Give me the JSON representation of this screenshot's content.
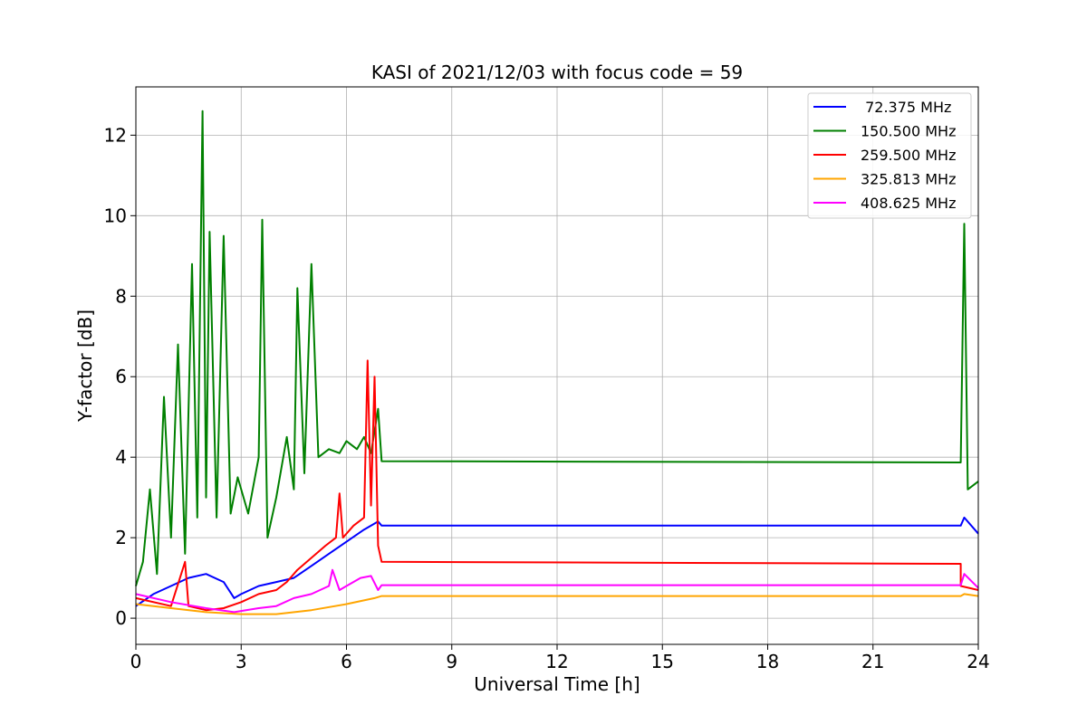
{
  "chart_data": {
    "type": "line",
    "title": "KASI of 2021/12/03 with focus code = 59",
    "xlabel": "Universal Time [h]",
    "ylabel": "Y-factor [dB]",
    "xlim": [
      0,
      24
    ],
    "ylim": [
      -0.65,
      13.2
    ],
    "xticks": [
      0,
      3,
      6,
      9,
      12,
      15,
      18,
      21,
      24
    ],
    "yticks": [
      0,
      2,
      4,
      6,
      8,
      10,
      12
    ],
    "grid": true,
    "legend_position": "top-right",
    "series": [
      {
        "name": " 72.375 MHz",
        "color": "#0000ff",
        "points": [
          [
            0,
            0.3
          ],
          [
            0.5,
            0.6
          ],
          [
            1,
            0.8
          ],
          [
            1.5,
            1.0
          ],
          [
            2,
            1.1
          ],
          [
            2.5,
            0.9
          ],
          [
            2.8,
            0.5
          ],
          [
            3,
            0.6
          ],
          [
            3.5,
            0.8
          ],
          [
            4,
            0.9
          ],
          [
            4.5,
            1.0
          ],
          [
            5,
            1.3
          ],
          [
            5.5,
            1.6
          ],
          [
            6,
            1.9
          ],
          [
            6.5,
            2.2
          ],
          [
            6.9,
            2.4
          ],
          [
            7,
            2.3
          ],
          [
            23.5,
            2.3
          ],
          [
            23.6,
            2.5
          ],
          [
            24,
            2.1
          ]
        ]
      },
      {
        "name": "150.500 MHz",
        "color": "#008000",
        "points": [
          [
            0,
            0.8
          ],
          [
            0.2,
            1.4
          ],
          [
            0.4,
            3.2
          ],
          [
            0.6,
            1.1
          ],
          [
            0.8,
            5.5
          ],
          [
            1,
            2.0
          ],
          [
            1.2,
            6.8
          ],
          [
            1.4,
            1.6
          ],
          [
            1.6,
            8.8
          ],
          [
            1.75,
            2.5
          ],
          [
            1.9,
            12.6
          ],
          [
            2.0,
            3.0
          ],
          [
            2.1,
            9.6
          ],
          [
            2.3,
            2.5
          ],
          [
            2.5,
            9.5
          ],
          [
            2.7,
            2.6
          ],
          [
            2.9,
            3.5
          ],
          [
            3.2,
            2.6
          ],
          [
            3.5,
            4.0
          ],
          [
            3.6,
            9.9
          ],
          [
            3.75,
            2.0
          ],
          [
            4,
            3.0
          ],
          [
            4.3,
            4.5
          ],
          [
            4.5,
            3.2
          ],
          [
            4.6,
            8.2
          ],
          [
            4.8,
            3.6
          ],
          [
            5,
            8.8
          ],
          [
            5.2,
            4.0
          ],
          [
            5.5,
            4.2
          ],
          [
            5.8,
            4.1
          ],
          [
            6,
            4.4
          ],
          [
            6.3,
            4.2
          ],
          [
            6.5,
            4.5
          ],
          [
            6.7,
            4.1
          ],
          [
            6.9,
            5.2
          ],
          [
            7,
            3.9
          ],
          [
            23.5,
            3.87
          ],
          [
            23.6,
            9.8
          ],
          [
            23.7,
            3.2
          ],
          [
            24,
            3.4
          ]
        ]
      },
      {
        "name": "259.500 MHz",
        "color": "#ff0000",
        "points": [
          [
            0,
            0.5
          ],
          [
            1,
            0.3
          ],
          [
            1.4,
            1.4
          ],
          [
            1.5,
            0.3
          ],
          [
            2,
            0.2
          ],
          [
            2.5,
            0.25
          ],
          [
            3,
            0.4
          ],
          [
            3.5,
            0.6
          ],
          [
            4,
            0.7
          ],
          [
            4.3,
            0.9
          ],
          [
            4.6,
            1.2
          ],
          [
            5,
            1.5
          ],
          [
            5.4,
            1.8
          ],
          [
            5.7,
            2.0
          ],
          [
            5.8,
            3.1
          ],
          [
            5.9,
            2.0
          ],
          [
            6.2,
            2.3
          ],
          [
            6.5,
            2.5
          ],
          [
            6.6,
            6.4
          ],
          [
            6.7,
            2.8
          ],
          [
            6.8,
            6.0
          ],
          [
            6.9,
            1.8
          ],
          [
            7,
            1.4
          ],
          [
            23.5,
            1.35
          ],
          [
            23.5,
            0.8
          ],
          [
            24,
            0.7
          ]
        ]
      },
      {
        "name": "325.813 MHz",
        "color": "#ffa500",
        "points": [
          [
            0,
            0.35
          ],
          [
            1,
            0.25
          ],
          [
            2,
            0.15
          ],
          [
            3,
            0.1
          ],
          [
            4,
            0.1
          ],
          [
            5,
            0.2
          ],
          [
            6,
            0.35
          ],
          [
            6.8,
            0.5
          ],
          [
            7,
            0.55
          ],
          [
            23.5,
            0.55
          ],
          [
            23.6,
            0.6
          ],
          [
            24,
            0.55
          ]
        ]
      },
      {
        "name": "408.625 MHz",
        "color": "#ff00ff",
        "points": [
          [
            0,
            0.6
          ],
          [
            1,
            0.4
          ],
          [
            2,
            0.25
          ],
          [
            2.8,
            0.15
          ],
          [
            3.5,
            0.25
          ],
          [
            4,
            0.3
          ],
          [
            4.5,
            0.5
          ],
          [
            5,
            0.6
          ],
          [
            5.5,
            0.8
          ],
          [
            5.6,
            1.2
          ],
          [
            5.8,
            0.7
          ],
          [
            6,
            0.8
          ],
          [
            6.4,
            1.0
          ],
          [
            6.7,
            1.05
          ],
          [
            6.9,
            0.7
          ],
          [
            7,
            0.82
          ],
          [
            23.5,
            0.82
          ],
          [
            23.6,
            1.1
          ],
          [
            24,
            0.75
          ]
        ]
      }
    ]
  }
}
